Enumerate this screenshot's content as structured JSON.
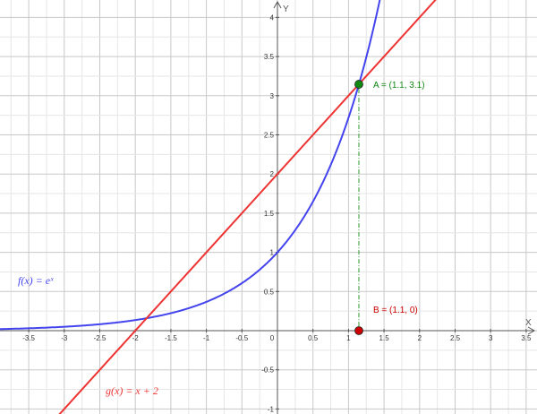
{
  "chart_data": {
    "type": "line",
    "xlabel": "X",
    "ylabel": "Y",
    "xlim": [
      -3.9,
      3.7
    ],
    "ylim": [
      -1.05,
      4.15
    ],
    "grid": true,
    "x_ticks": [
      "-3.5",
      "-3",
      "-2.5",
      "-2",
      "-1.5",
      "-1",
      "-0.5",
      "0",
      "0.5",
      "1",
      "1.5",
      "2",
      "2.5",
      "3",
      "3.5"
    ],
    "y_ticks": [
      "-1",
      "-0.5",
      "0.5",
      "1",
      "1.5",
      "2",
      "2.5",
      "3",
      "3.5",
      "4"
    ],
    "series": [
      {
        "name": "f(x) = eˣ",
        "formula": "exp",
        "color": "#4444ee"
      },
      {
        "name": "g(x) = x + 2",
        "formula": "x+2",
        "color": "#ee3333"
      }
    ],
    "points": [
      {
        "name": "A",
        "label": "A = (1.1, 3.1)",
        "x": 1.1,
        "y": 3.1,
        "color": "#118811"
      },
      {
        "name": "B",
        "label": "B = (1.1, 0)",
        "x": 1.1,
        "y": 0,
        "color": "#cc0000"
      }
    ],
    "annotations": {
      "f_label": "f(x) = eˣ",
      "g_label": "g(x) = x + 2"
    }
  }
}
